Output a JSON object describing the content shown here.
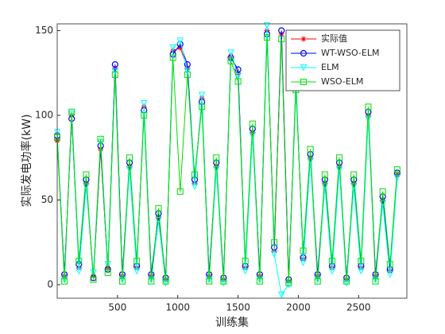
{
  "chart_data": {
    "type": "line",
    "xlabel": "训练集",
    "ylabel": "实际发电功率(kW)",
    "x": [
      0,
      60,
      120,
      180,
      240,
      300,
      360,
      420,
      480,
      540,
      600,
      660,
      720,
      780,
      840,
      900,
      960,
      1020,
      1080,
      1140,
      1200,
      1260,
      1320,
      1380,
      1440,
      1500,
      1560,
      1620,
      1680,
      1740,
      1800,
      1860,
      1920,
      1980,
      2040,
      2100,
      2160,
      2220,
      2280,
      2340,
      2400,
      2460,
      2520,
      2580,
      2640,
      2700,
      2760,
      2820
    ],
    "series": [
      {
        "name": "实际值",
        "color": "#ff0000",
        "marker": "star",
        "values": [
          85,
          5,
          100,
          10,
          60,
          5,
          80,
          10,
          128,
          5,
          70,
          10,
          105,
          5,
          40,
          3,
          138,
          140,
          128,
          60,
          110,
          5,
          70,
          3,
          135,
          125,
          10,
          90,
          5,
          150,
          20,
          148,
          2,
          120,
          15,
          75,
          5,
          60,
          10,
          70,
          3,
          60,
          10,
          100,
          5,
          50,
          8,
          65
        ]
      },
      {
        "name": "WT-WSO-ELM",
        "color": "#0000ff",
        "marker": "circle",
        "values": [
          88,
          6,
          98,
          12,
          62,
          4,
          82,
          9,
          130,
          6,
          72,
          11,
          103,
          6,
          42,
          4,
          136,
          142,
          130,
          62,
          108,
          6,
          72,
          4,
          134,
          127,
          11,
          92,
          6,
          148,
          22,
          150,
          3,
          118,
          16,
          77,
          6,
          62,
          11,
          72,
          4,
          62,
          11,
          102,
          6,
          52,
          9,
          66
        ]
      },
      {
        "name": "ELM",
        "color": "#00ffff",
        "marker": "triangle",
        "values": [
          90,
          3,
          101,
          8,
          58,
          7,
          84,
          12,
          126,
          3,
          68,
          8,
          107,
          3,
          38,
          1,
          140,
          144,
          126,
          58,
          112,
          3,
          68,
          1,
          137,
          123,
          8,
          88,
          3,
          153,
          18,
          -6,
          0,
          122,
          13,
          73,
          3,
          58,
          8,
          68,
          1,
          58,
          8,
          98,
          3,
          48,
          6,
          63
        ]
      },
      {
        "name": "WSO-ELM",
        "color": "#00e000",
        "marker": "square",
        "values": [
          87,
          2,
          102,
          14,
          65,
          3,
          86,
          7,
          124,
          2,
          75,
          14,
          100,
          2,
          45,
          2,
          134,
          55,
          124,
          65,
          105,
          2,
          75,
          2,
          132,
          120,
          14,
          95,
          2,
          146,
          25,
          145,
          1,
          115,
          20,
          80,
          2,
          65,
          14,
          75,
          2,
          65,
          14,
          105,
          2,
          55,
          12,
          68
        ]
      }
    ],
    "xlim": [
      0,
      2900
    ],
    "ylim": [
      -8,
      154
    ],
    "xticks": [
      500,
      1000,
      1500,
      2000,
      2500
    ],
    "yticks": [
      0,
      50,
      100,
      150
    ],
    "legend": "top-right"
  }
}
